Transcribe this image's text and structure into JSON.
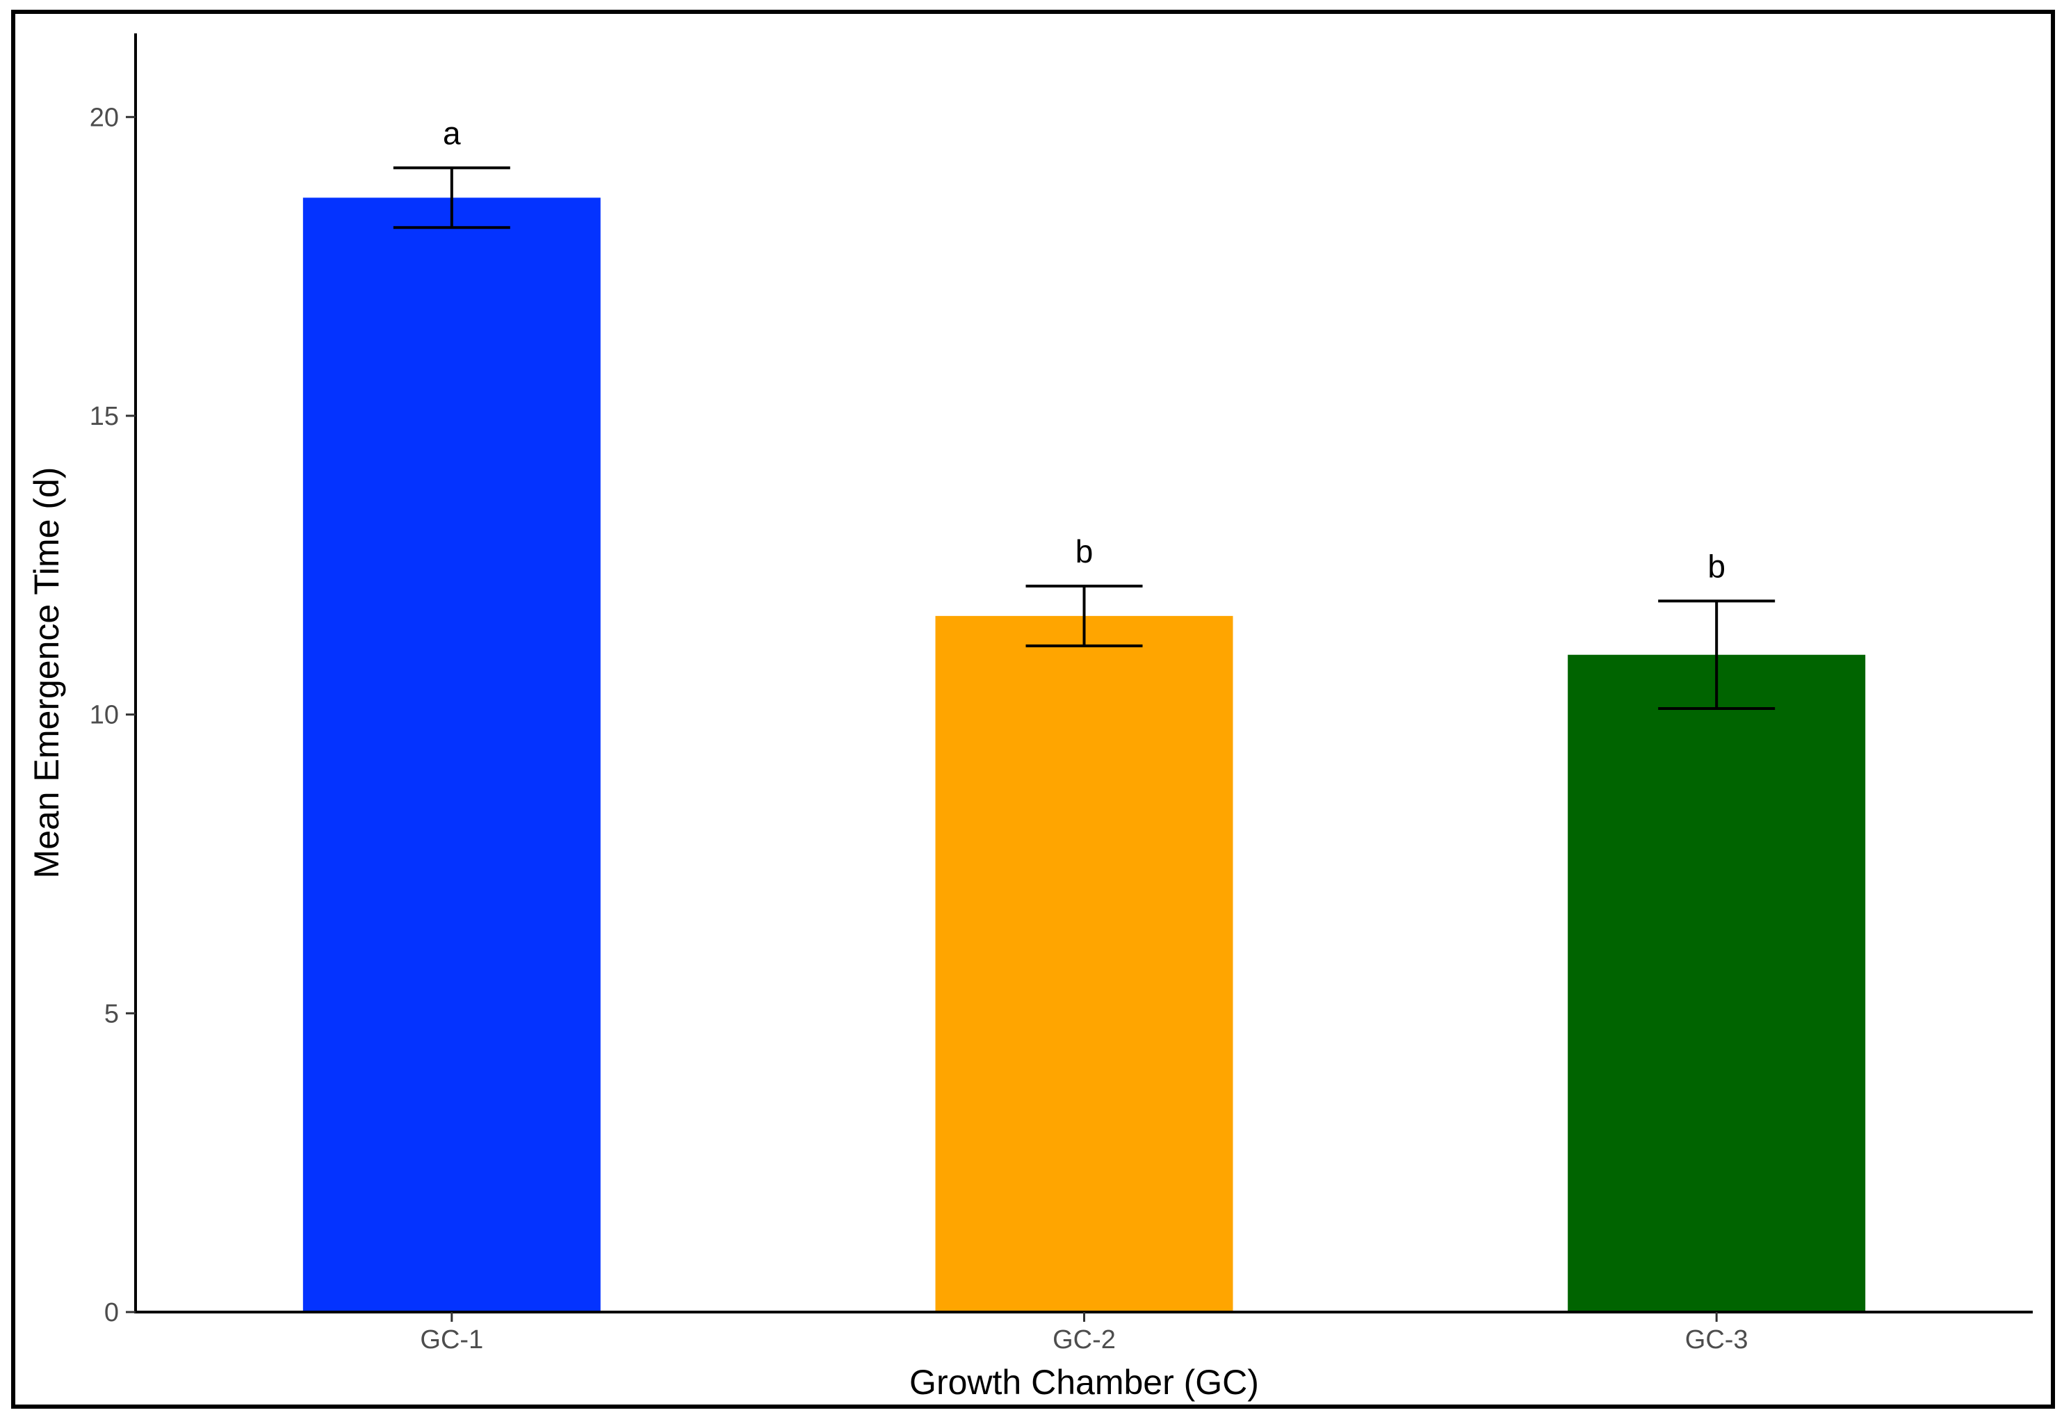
{
  "chart_data": {
    "type": "bar",
    "title": "",
    "xlabel": "Growth Chamber (GC)",
    "ylabel": "Mean Emergence Time (d)",
    "ylim": [
      0,
      21.4
    ],
    "yticks": [
      0,
      5,
      10,
      15,
      20
    ],
    "categories": [
      "GC-1",
      "GC-2",
      "GC-3"
    ],
    "values": [
      18.65,
      11.65,
      11.0
    ],
    "error": [
      0.5,
      0.5,
      0.9
    ],
    "significance_letters": [
      "a",
      "b",
      "b"
    ],
    "colors": [
      "#0433FF",
      "#FFA500",
      "#006400"
    ],
    "grid": false,
    "legend": "none"
  }
}
